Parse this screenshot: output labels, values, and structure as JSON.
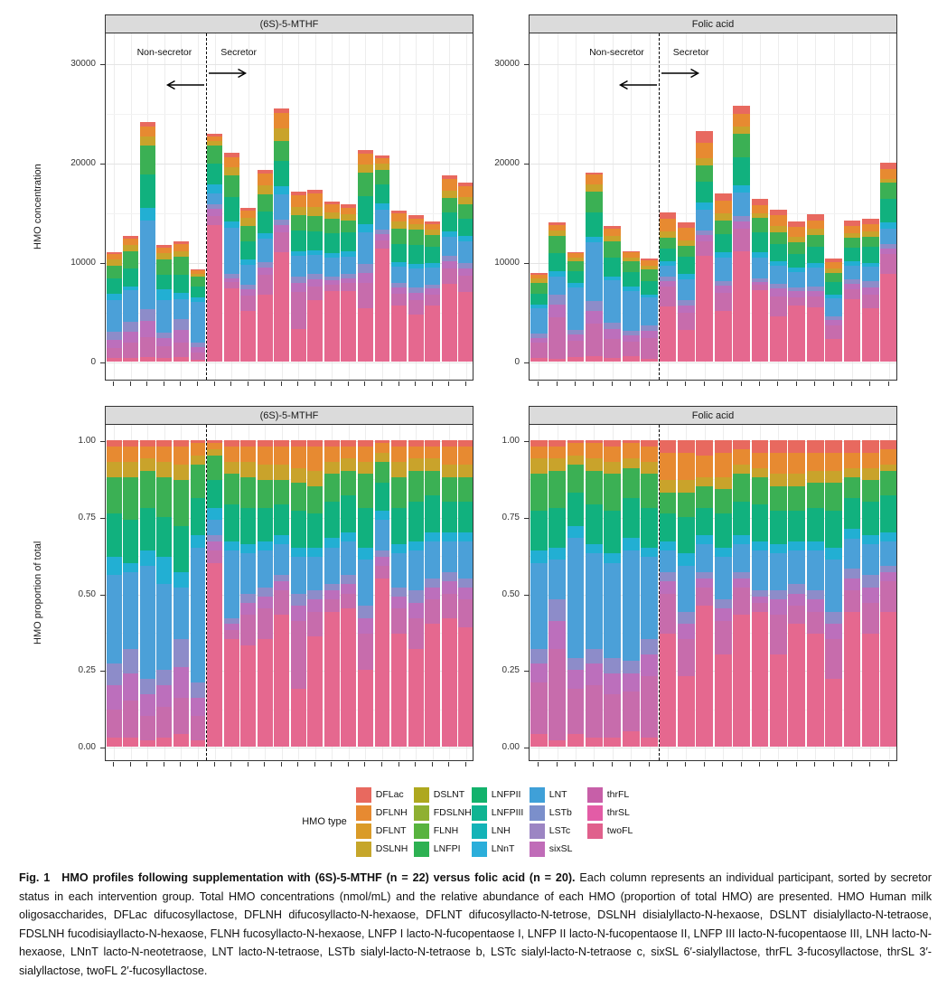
{
  "row1": {
    "ylabel": "HMO concentration",
    "yticks": [
      0,
      10000,
      20000,
      30000
    ],
    "tick_labels": [
      "0",
      "10000",
      "20000",
      "30000"
    ]
  },
  "row2": {
    "ylabel": "HMO proportion of total",
    "yticks": [
      0,
      0.25,
      0.5,
      0.75,
      1
    ],
    "tick_labels": [
      "0.00",
      "0.25",
      "0.50",
      "0.75",
      "1.00"
    ]
  },
  "annotations": {
    "non_secretor": "Non-secretor",
    "secretor": "Secretor"
  },
  "legend": {
    "title": "HMO type",
    "entries": [
      {
        "label": "DFLac",
        "color": "#E8695F"
      },
      {
        "label": "DFLNH",
        "color": "#E78A31"
      },
      {
        "label": "DFLNT",
        "color": "#DA9B28"
      },
      {
        "label": "DSLNH",
        "color": "#C6A62B"
      },
      {
        "label": "DSLNT",
        "color": "#AEA81E"
      },
      {
        "label": "FDSLNH",
        "color": "#8FB032"
      },
      {
        "label": "FLNH",
        "color": "#58B33E"
      },
      {
        "label": "LNFPI",
        "color": "#2DB152"
      },
      {
        "label": "LNFPII",
        "color": "#12B26C"
      },
      {
        "label": "LNFPIII",
        "color": "#0FB492"
      },
      {
        "label": "LNH",
        "color": "#13B3B7"
      },
      {
        "label": "LNnT",
        "color": "#2BAEDA"
      },
      {
        "label": "LNT",
        "color": "#3FA0D8"
      },
      {
        "label": "LSTb",
        "color": "#7B8FCB"
      },
      {
        "label": "LSTc",
        "color": "#9C85C3"
      },
      {
        "label": "sixSL",
        "color": "#C06CB8"
      },
      {
        "label": "thrFL",
        "color": "#C75FA8"
      },
      {
        "label": "thrSL",
        "color": "#E35CA6"
      },
      {
        "label": "twoFL",
        "color": "#E0608C"
      }
    ]
  },
  "caption": {
    "tag": "Fig. 1",
    "title": "HMO profiles following supplementation with (6S)-5-MTHF (n = 22) versus folic acid (n = 20).",
    "body": "Each column represents an individual participant, sorted by secretor status in each intervention group. Total HMO concentrations (nmol/mL) and the relative abundance of each HMO (proportion of total HMO) are presented. HMO Human milk oligosaccharides, DFLac difucosyllactose, DFLNH difucosyllacto-N-hexaose, DFLNT difucosyllacto-N-tetrose, DSLNH disialyllacto-N-hexaose, DSLNT disialyllacto-N-tetraose, FDSLNH fucodisiayllacto-N-hexaose, FLNH fucosyllacto-N-hexaose, LNFP I lacto-N-fucopentaose I, LNFP II lacto-N-fucopentaose II, LNFP III lacto-N-fucopentaose III, LNH lacto-N-hexaose, LNnT lacto-N-neotetraose, LNT lacto-N-tetraose, LSTb sialyl-lacto-N-tetraose b, LSTc sialyl-lacto-N-tetraose c, sixSL 6′-sialyllactose, thrFL 3-fucosyllactose, thrSL 3′-sialyllactose, twoFL 2′-fucosyllactose."
  },
  "chart_data": {
    "type": "bar",
    "subtype": "stacked",
    "description": "Four panels: top row = total HMO concentration (nmol/mL) stacked by HMO type; bottom row = HMO proportion of total (0-1). Columns are individual participants sorted by secretor status (dashed line separates non-secretors from secretors).",
    "concentration_axis": {
      "label": "HMO concentration",
      "ticks": [
        0,
        10000,
        20000,
        30000
      ],
      "units": "nmol/mL"
    },
    "proportion_axis": {
      "label": "HMO proportion of total",
      "ticks": [
        0,
        0.25,
        0.5,
        0.75,
        1.0
      ]
    },
    "stack_order_bottom_to_top": [
      "twoFL",
      "thrFL",
      "sixSL",
      "LSTb/LSTc",
      "LNT",
      "LNnT/LNH",
      "LNFPII/LNFPIII",
      "LNFPI/FLNH",
      "DSLNH/DFLNT",
      "DFLNH",
      "DFLac"
    ],
    "stack_colors": {
      "twoFL": "#E5688F",
      "thrFL": "#C76CAC",
      "sixSL": "#BC6FBC",
      "LSTb/LSTc": "#8D8CC9",
      "LNT": "#4BA0D8",
      "LNnT/LNH": "#22AFD3",
      "LNFPII/LNFPIII": "#11B17E",
      "LNFPI/FLNH": "#3BB054",
      "DSLNH/DFLNT": "#C9A32B",
      "DFLNH": "#E78A31",
      "DFLac": "#E8695F"
    },
    "groups": [
      {
        "title": "(6S)-5-MTHF",
        "n": 22,
        "non_secretor_count": 6,
        "totals_nmol_per_mL": [
          11000,
          12600,
          24100,
          11700,
          12100,
          9300,
          22900,
          21000,
          15500,
          19300,
          25500,
          17100,
          17250,
          16100,
          15800,
          21300,
          20700,
          15200,
          14700,
          14100,
          18700,
          18000
        ],
        "proportions": [
          [
            0.03,
            0.09,
            0.08,
            0.07,
            0.29,
            0.06,
            0.14,
            0.12,
            0.05,
            0.05,
            0.02
          ],
          [
            0.03,
            0.12,
            0.09,
            0.08,
            0.25,
            0.03,
            0.14,
            0.14,
            0.05,
            0.05,
            0.02
          ],
          [
            0.02,
            0.08,
            0.07,
            0.05,
            0.37,
            0.05,
            0.14,
            0.12,
            0.04,
            0.04,
            0.02
          ],
          [
            0.03,
            0.1,
            0.07,
            0.05,
            0.28,
            0.09,
            0.13,
            0.13,
            0.05,
            0.05,
            0.02
          ],
          [
            0.04,
            0.12,
            0.1,
            0.09,
            0.17,
            0.05,
            0.15,
            0.15,
            0.05,
            0.06,
            0.02
          ],
          [
            0.02,
            0.08,
            0.06,
            0.05,
            0.44,
            0.04,
            0.12,
            0.11,
            0.03,
            0.04,
            0.01
          ],
          [
            0.6,
            0.04,
            0.03,
            0.02,
            0.05,
            0.04,
            0.09,
            0.08,
            0.02,
            0.02,
            0.01
          ],
          [
            0.35,
            0.03,
            0.02,
            0.02,
            0.22,
            0.03,
            0.12,
            0.1,
            0.04,
            0.05,
            0.02
          ],
          [
            0.33,
            0.1,
            0.04,
            0.03,
            0.13,
            0.03,
            0.12,
            0.1,
            0.05,
            0.05,
            0.02
          ],
          [
            0.35,
            0.1,
            0.04,
            0.03,
            0.12,
            0.03,
            0.11,
            0.09,
            0.05,
            0.06,
            0.02
          ],
          [
            0.43,
            0.08,
            0.03,
            0.02,
            0.1,
            0.03,
            0.1,
            0.08,
            0.05,
            0.06,
            0.02
          ],
          [
            0.19,
            0.22,
            0.05,
            0.04,
            0.12,
            0.03,
            0.12,
            0.09,
            0.05,
            0.07,
            0.02
          ],
          [
            0.36,
            0.08,
            0.04,
            0.03,
            0.11,
            0.03,
            0.11,
            0.09,
            0.05,
            0.08,
            0.02
          ],
          [
            0.44,
            0.04,
            0.03,
            0.02,
            0.12,
            0.03,
            0.12,
            0.09,
            0.04,
            0.05,
            0.02
          ],
          [
            0.45,
            0.05,
            0.03,
            0.03,
            0.11,
            0.03,
            0.12,
            0.08,
            0.04,
            0.04,
            0.02
          ],
          [
            0.25,
            0.12,
            0.05,
            0.04,
            0.15,
            0.04,
            0.13,
            0.11,
            0.04,
            0.05,
            0.02
          ],
          [
            0.55,
            0.04,
            0.03,
            0.02,
            0.1,
            0.03,
            0.09,
            0.07,
            0.03,
            0.03,
            0.01
          ],
          [
            0.37,
            0.08,
            0.04,
            0.03,
            0.11,
            0.03,
            0.12,
            0.1,
            0.05,
            0.05,
            0.02
          ],
          [
            0.32,
            0.1,
            0.05,
            0.04,
            0.13,
            0.03,
            0.13,
            0.1,
            0.04,
            0.04,
            0.02
          ],
          [
            0.4,
            0.08,
            0.04,
            0.03,
            0.12,
            0.03,
            0.12,
            0.08,
            0.04,
            0.04,
            0.02
          ],
          [
            0.42,
            0.08,
            0.04,
            0.03,
            0.1,
            0.03,
            0.1,
            0.08,
            0.04,
            0.06,
            0.02
          ],
          [
            0.39,
            0.09,
            0.04,
            0.03,
            0.12,
            0.03,
            0.1,
            0.08,
            0.04,
            0.06,
            0.02
          ]
        ]
      },
      {
        "title": "Folic acid",
        "n": 20,
        "non_secretor_count": 7,
        "totals_nmol_per_mL": [
          8900,
          14000,
          11000,
          19000,
          13600,
          11100,
          10400,
          15000,
          14000,
          23200,
          16900,
          25700,
          16400,
          15300,
          14100,
          14800,
          10400,
          14200,
          14400,
          20000
        ],
        "proportions": [
          [
            0.04,
            0.17,
            0.06,
            0.05,
            0.28,
            0.04,
            0.13,
            0.12,
            0.05,
            0.04,
            0.02
          ],
          [
            0.02,
            0.3,
            0.09,
            0.07,
            0.13,
            0.04,
            0.13,
            0.12,
            0.04,
            0.04,
            0.02
          ],
          [
            0.04,
            0.15,
            0.06,
            0.04,
            0.39,
            0.04,
            0.11,
            0.09,
            0.03,
            0.04,
            0.01
          ],
          [
            0.03,
            0.17,
            0.07,
            0.05,
            0.31,
            0.03,
            0.13,
            0.11,
            0.04,
            0.05,
            0.01
          ],
          [
            0.03,
            0.14,
            0.07,
            0.05,
            0.31,
            0.03,
            0.14,
            0.12,
            0.04,
            0.05,
            0.02
          ],
          [
            0.05,
            0.13,
            0.06,
            0.04,
            0.36,
            0.04,
            0.13,
            0.1,
            0.03,
            0.05,
            0.01
          ],
          [
            0.03,
            0.2,
            0.07,
            0.05,
            0.27,
            0.03,
            0.13,
            0.11,
            0.04,
            0.05,
            0.02
          ],
          [
            0.37,
            0.13,
            0.04,
            0.03,
            0.07,
            0.03,
            0.09,
            0.07,
            0.04,
            0.09,
            0.04
          ],
          [
            0.23,
            0.12,
            0.05,
            0.04,
            0.15,
            0.04,
            0.12,
            0.08,
            0.04,
            0.09,
            0.04
          ],
          [
            0.46,
            0.06,
            0.03,
            0.02,
            0.09,
            0.03,
            0.09,
            0.07,
            0.03,
            0.07,
            0.05
          ],
          [
            0.3,
            0.11,
            0.04,
            0.03,
            0.14,
            0.03,
            0.11,
            0.08,
            0.04,
            0.08,
            0.04
          ],
          [
            0.43,
            0.09,
            0.03,
            0.02,
            0.09,
            0.03,
            0.11,
            0.09,
            0.03,
            0.05,
            0.03
          ],
          [
            0.44,
            0.03,
            0.02,
            0.02,
            0.13,
            0.03,
            0.12,
            0.09,
            0.03,
            0.05,
            0.04
          ],
          [
            0.3,
            0.13,
            0.05,
            0.03,
            0.12,
            0.03,
            0.11,
            0.08,
            0.04,
            0.07,
            0.04
          ],
          [
            0.4,
            0.06,
            0.04,
            0.03,
            0.11,
            0.03,
            0.1,
            0.08,
            0.04,
            0.07,
            0.04
          ],
          [
            0.37,
            0.07,
            0.04,
            0.03,
            0.13,
            0.03,
            0.11,
            0.08,
            0.04,
            0.06,
            0.04
          ],
          [
            0.22,
            0.13,
            0.05,
            0.04,
            0.17,
            0.04,
            0.12,
            0.09,
            0.04,
            0.06,
            0.04
          ],
          [
            0.44,
            0.07,
            0.04,
            0.03,
            0.1,
            0.03,
            0.1,
            0.07,
            0.03,
            0.05,
            0.04
          ],
          [
            0.37,
            0.1,
            0.05,
            0.04,
            0.1,
            0.03,
            0.11,
            0.07,
            0.04,
            0.05,
            0.04
          ],
          [
            0.44,
            0.1,
            0.03,
            0.02,
            0.08,
            0.03,
            0.12,
            0.08,
            0.02,
            0.05,
            0.03
          ]
        ]
      }
    ]
  }
}
